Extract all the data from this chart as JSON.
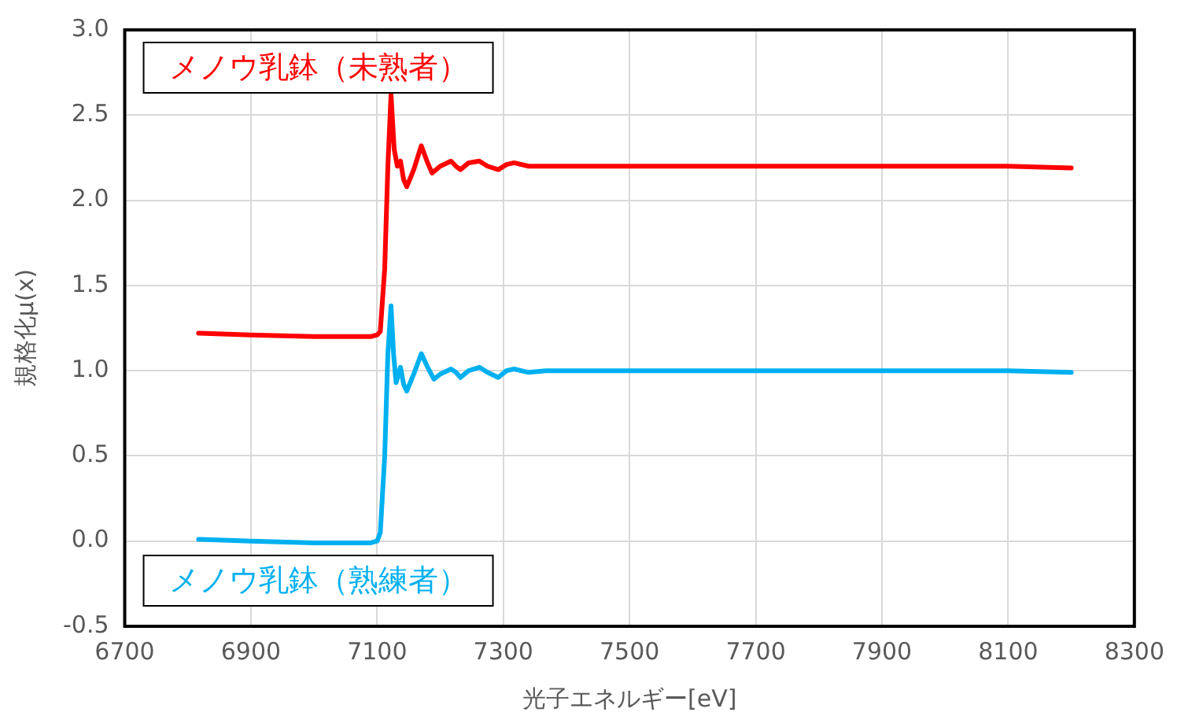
{
  "chart_data": {
    "type": "line",
    "xlabel": "光子エネルギー[eV]",
    "ylabel": "規格化μ(x)",
    "xlim": [
      6700,
      8300
    ],
    "xticks": [
      6700,
      6900,
      7100,
      7300,
      7500,
      7700,
      7900,
      8100,
      8300
    ],
    "ylim": [
      -0.5,
      3.0
    ],
    "yticks": [
      {
        "value": -0.5,
        "label": "-0.5"
      },
      {
        "value": 0,
        "label": "0.0"
      },
      {
        "value": 0.5,
        "label": "0.5"
      },
      {
        "value": 1,
        "label": "1.0"
      },
      {
        "value": 1.5,
        "label": "1.5"
      },
      {
        "value": 2,
        "label": "2.0"
      },
      {
        "value": 2.5,
        "label": "2.5"
      },
      {
        "value": 3,
        "label": "3.0"
      }
    ],
    "grid": true,
    "legend": false,
    "marker": "none",
    "line_style": "solid",
    "series": [
      {
        "name": "メノウ乳鉢（未熟者）",
        "color": "#ff0000",
        "x": [
          6817,
          6900,
          7000,
          7050,
          7090,
          7100,
          7105,
          7112,
          7117,
          7122,
          7127,
          7132,
          7137,
          7142,
          7147,
          7158,
          7170,
          7180,
          7187,
          7200,
          7217,
          7225,
          7232,
          7245,
          7262,
          7275,
          7292,
          7305,
          7317,
          7340,
          7367,
          7400,
          7500,
          7700,
          7900,
          8100,
          8200
        ],
        "values": [
          1.22,
          1.21,
          1.2,
          1.2,
          1.2,
          1.21,
          1.23,
          1.6,
          2.2,
          2.62,
          2.3,
          2.2,
          2.23,
          2.12,
          2.08,
          2.18,
          2.32,
          2.22,
          2.16,
          2.2,
          2.23,
          2.2,
          2.18,
          2.22,
          2.23,
          2.2,
          2.18,
          2.21,
          2.22,
          2.2,
          2.2,
          2.2,
          2.2,
          2.2,
          2.2,
          2.2,
          2.19
        ]
      },
      {
        "name": "メノウ乳鉢（熟練者）",
        "color": "#00b0f0",
        "x": [
          6817,
          6900,
          7000,
          7050,
          7090,
          7100,
          7105,
          7112,
          7117,
          7122,
          7126,
          7130,
          7137,
          7142,
          7147,
          7158,
          7170,
          7180,
          7190,
          7200,
          7217,
          7225,
          7232,
          7245,
          7262,
          7275,
          7292,
          7305,
          7317,
          7340,
          7367,
          7400,
          7500,
          7700,
          7900,
          8100,
          8200
        ],
        "values": [
          0.01,
          0.0,
          -0.01,
          -0.01,
          -0.01,
          0.0,
          0.05,
          0.5,
          1.1,
          1.38,
          1.1,
          0.93,
          1.02,
          0.92,
          0.88,
          0.98,
          1.1,
          1.02,
          0.95,
          0.98,
          1.01,
          0.99,
          0.96,
          1.0,
          1.02,
          0.99,
          0.96,
          1.0,
          1.01,
          0.99,
          1.0,
          1.0,
          1.0,
          1.0,
          1.0,
          1.0,
          0.99
        ]
      }
    ]
  }
}
